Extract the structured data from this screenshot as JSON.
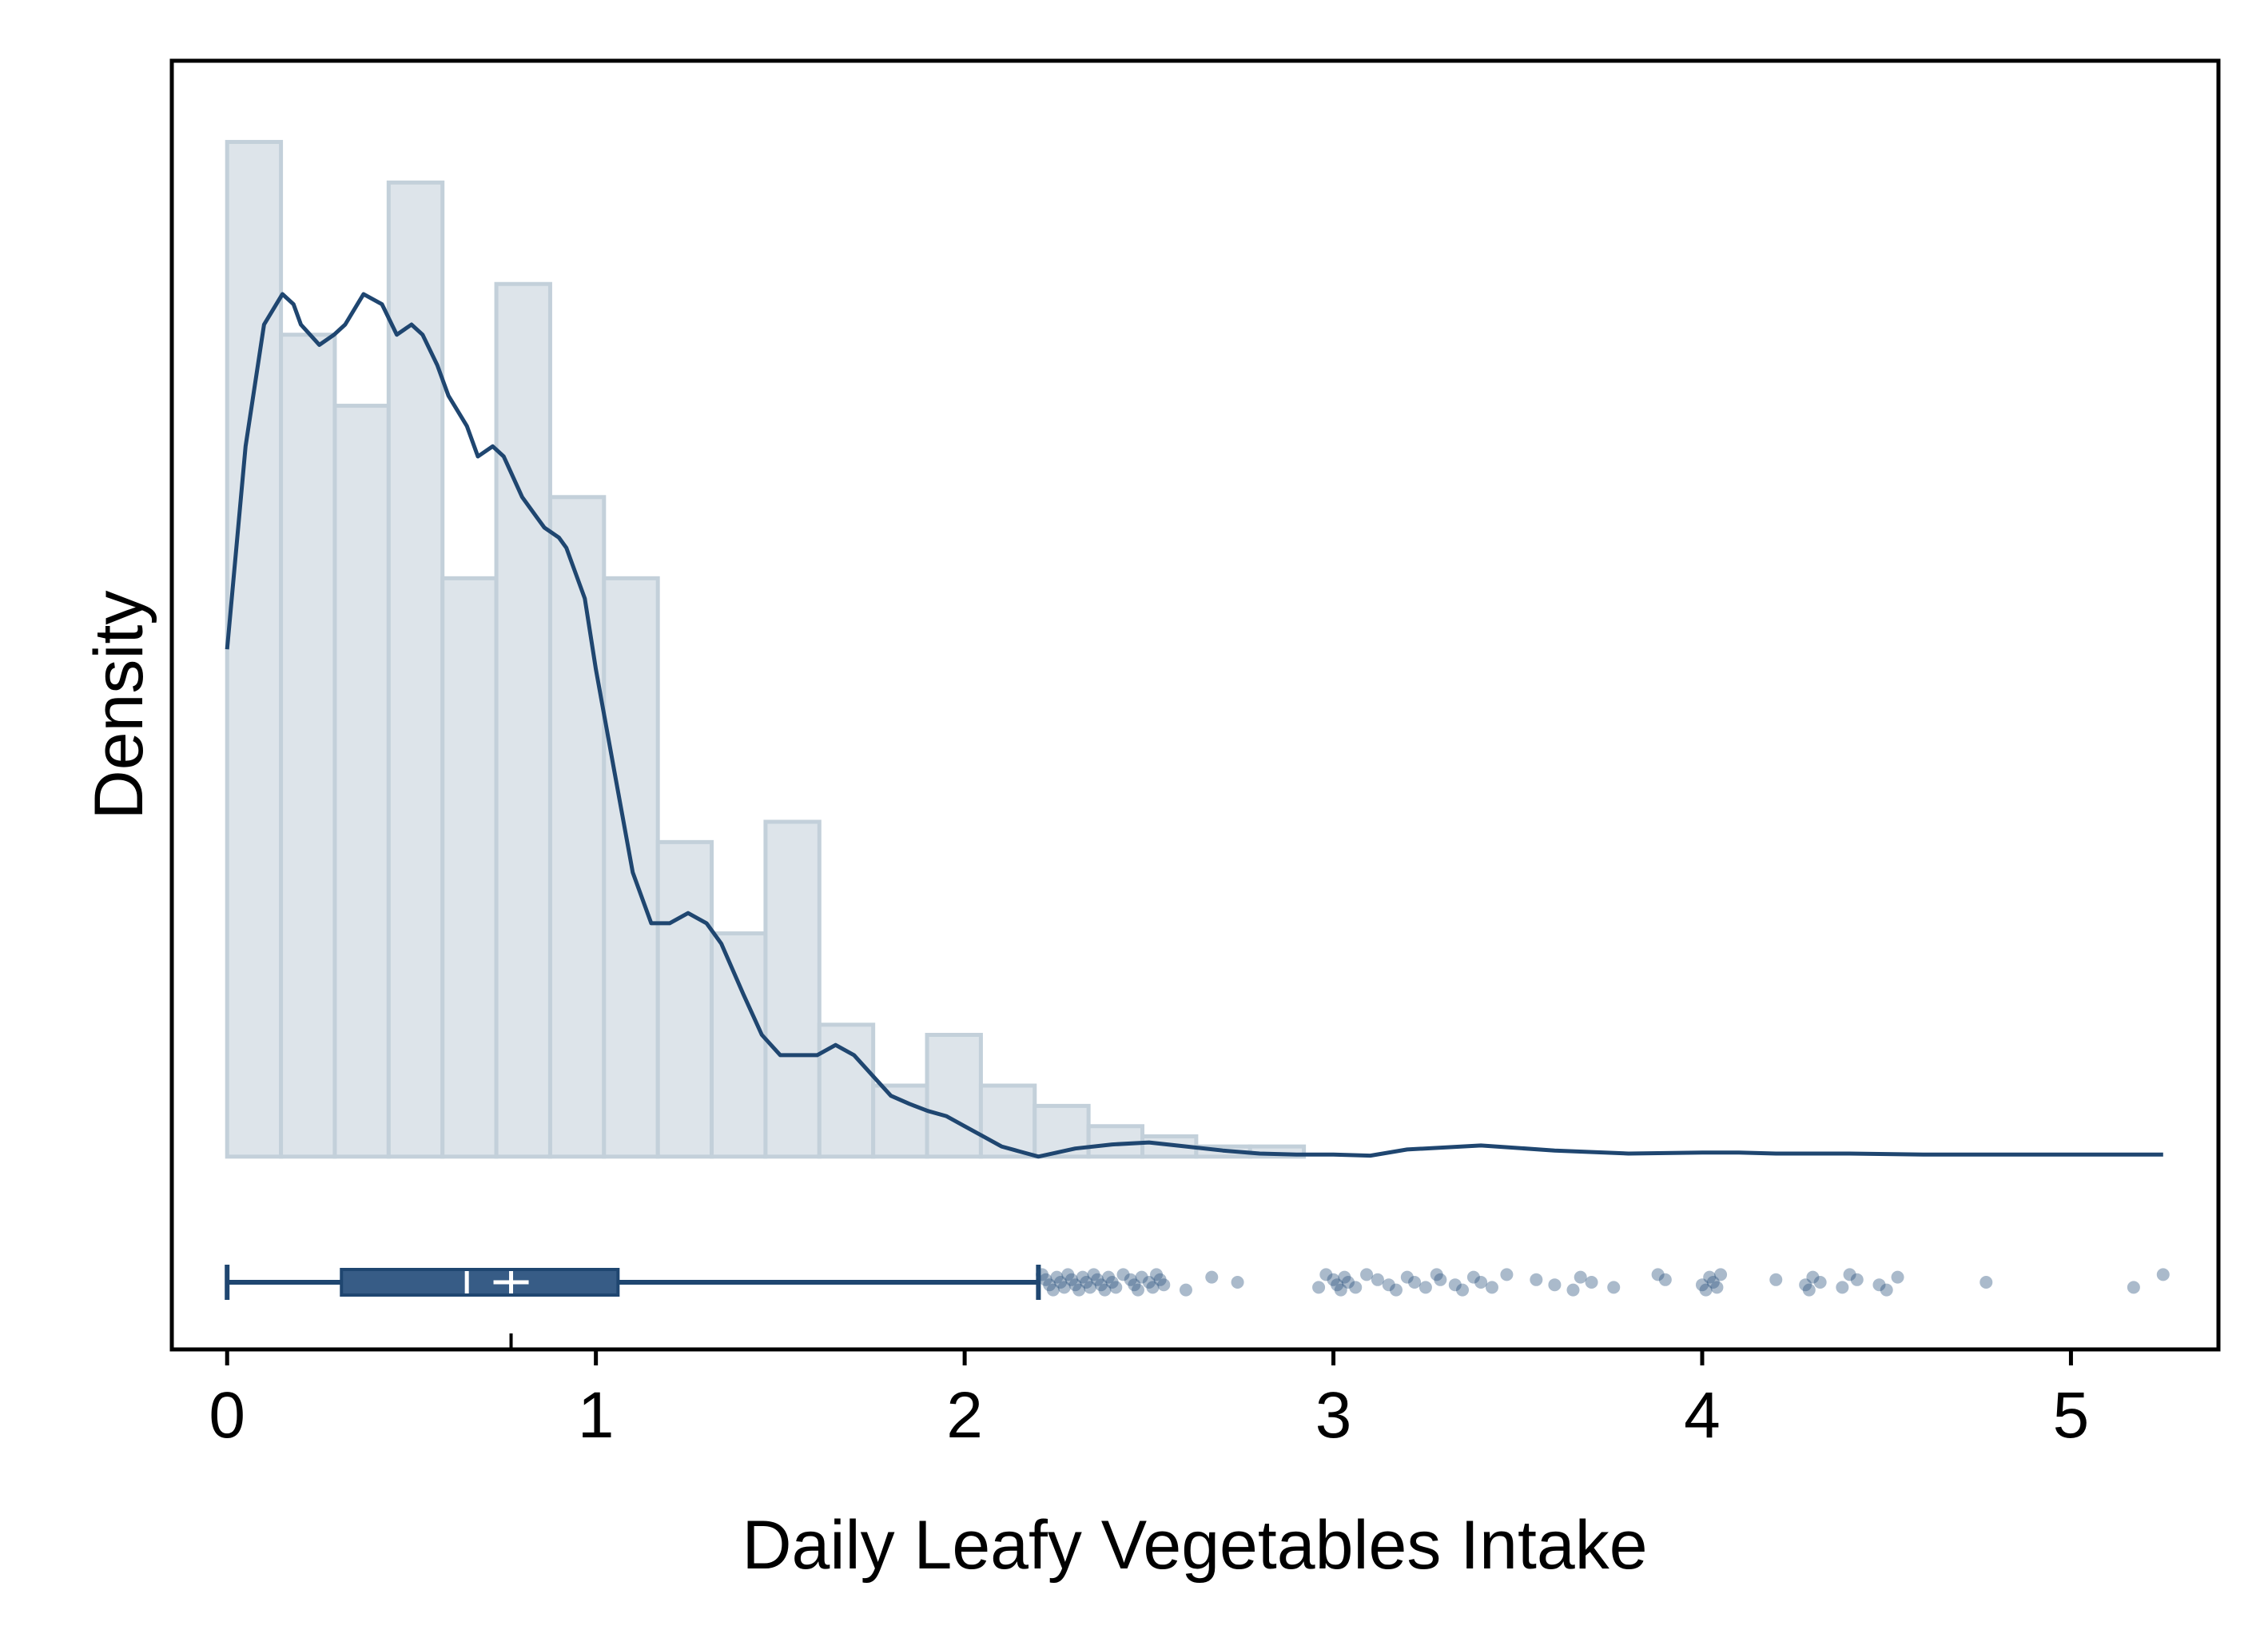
{
  "colors": {
    "bar_fill": "#dde4ea",
    "bar_stroke": "#c3d0da",
    "kde_line": "#1f4670",
    "box_fill": "#375c86",
    "box_stroke": "#1f4670",
    "outlier": "#2b537d",
    "frame": "#000000"
  },
  "chart_data": {
    "type": "histogram",
    "xlabel": "Daily Leafy Vegetables Intake",
    "ylabel": "Density",
    "xlim": [
      -0.15,
      5.4
    ],
    "ylim": [
      -0.19,
      1.08
    ],
    "x_ticks": [
      0,
      1,
      2,
      3,
      4,
      5
    ],
    "x_tick_labels": [
      "0",
      "1",
      "2",
      "3",
      "4",
      "5"
    ],
    "y_ticks_shown": false,
    "grid": false,
    "bins": {
      "start": 0,
      "width": 0.146,
      "density": [
        1.0,
        0.81,
        0.74,
        0.96,
        0.57,
        0.86,
        0.65,
        0.57,
        0.31,
        0.22,
        0.33,
        0.13,
        0.07,
        0.12,
        0.07,
        0.05,
        0.03,
        0.02,
        0.01,
        0.01,
        0.0,
        0.0,
        0.0,
        0.0,
        0.0,
        0.0,
        0.0,
        0.0,
        0.0,
        0.0,
        0.0,
        0.0,
        0.0,
        0.0,
        0.0,
        0.0
      ]
    },
    "kde": {
      "x": [
        0,
        0.05,
        0.1,
        0.15,
        0.18,
        0.2,
        0.25,
        0.29,
        0.32,
        0.37,
        0.42,
        0.46,
        0.5,
        0.53,
        0.57,
        0.6,
        0.65,
        0.68,
        0.72,
        0.75,
        0.8,
        0.84,
        0.86,
        0.9,
        0.92,
        0.97,
        1.0,
        1.05,
        1.1,
        1.15,
        1.2,
        1.25,
        1.3,
        1.34,
        1.4,
        1.45,
        1.5,
        1.55,
        1.6,
        1.65,
        1.7,
        1.75,
        1.8,
        1.85,
        1.9,
        1.95,
        2.0,
        2.05,
        2.1,
        2.15,
        2.2,
        2.3,
        2.4,
        2.5,
        2.6,
        2.7,
        2.8,
        2.9,
        3.0,
        3.1,
        3.2,
        3.4,
        3.6,
        3.8,
        4.0,
        4.1,
        4.2,
        4.4,
        4.6,
        4.8,
        5.0,
        5.2,
        5.25
      ],
      "y": [
        0.5,
        0.7,
        0.82,
        0.85,
        0.84,
        0.82,
        0.8,
        0.81,
        0.82,
        0.85,
        0.84,
        0.81,
        0.82,
        0.81,
        0.78,
        0.75,
        0.72,
        0.69,
        0.7,
        0.69,
        0.65,
        0.63,
        0.62,
        0.61,
        0.6,
        0.55,
        0.48,
        0.38,
        0.28,
        0.23,
        0.23,
        0.24,
        0.23,
        0.21,
        0.16,
        0.12,
        0.1,
        0.1,
        0.1,
        0.11,
        0.1,
        0.08,
        0.06,
        0.052,
        0.045,
        0.04,
        0.03,
        0.02,
        0.01,
        0.005,
        0.0,
        0.008,
        0.012,
        0.014,
        0.01,
        0.006,
        0.003,
        0.002,
        0.002,
        0.001,
        0.007,
        0.011,
        0.006,
        0.003,
        0.004,
        0.004,
        0.003,
        0.003,
        0.002,
        0.002,
        0.002,
        0.002,
        0.002
      ]
    },
    "boxplot": {
      "whisker_low": 0.0,
      "q1": 0.31,
      "median": 0.65,
      "mean": 0.77,
      "q3": 1.06,
      "whisker_high": 2.2
    },
    "outliers": [
      2.21,
      2.22,
      2.23,
      2.24,
      2.25,
      2.26,
      2.27,
      2.28,
      2.29,
      2.3,
      2.31,
      2.32,
      2.33,
      2.34,
      2.35,
      2.36,
      2.37,
      2.38,
      2.39,
      2.4,
      2.41,
      2.43,
      2.45,
      2.46,
      2.47,
      2.48,
      2.5,
      2.51,
      2.52,
      2.53,
      2.54,
      2.6,
      2.67,
      2.74,
      2.96,
      2.98,
      3.0,
      3.01,
      3.02,
      3.03,
      3.04,
      3.06,
      3.09,
      3.12,
      3.15,
      3.17,
      3.2,
      3.22,
      3.25,
      3.28,
      3.29,
      3.33,
      3.35,
      3.38,
      3.4,
      3.43,
      3.47,
      3.55,
      3.6,
      3.65,
      3.67,
      3.7,
      3.76,
      3.88,
      3.9,
      4.0,
      4.01,
      4.02,
      4.03,
      4.04,
      4.05,
      4.2,
      4.28,
      4.29,
      4.3,
      4.32,
      4.38,
      4.4,
      4.42,
      4.48,
      4.5,
      4.53,
      4.77,
      5.17,
      5.25
    ],
    "mean_tick": 0.77
  }
}
